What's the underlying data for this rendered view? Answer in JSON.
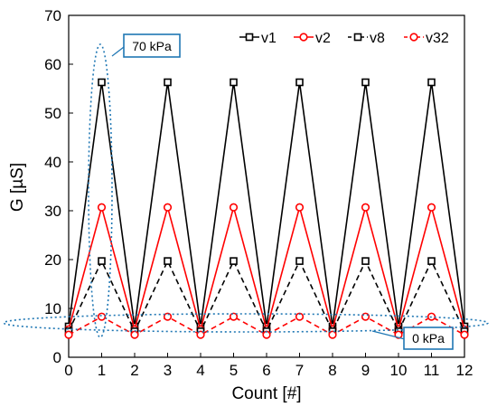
{
  "chart_data": {
    "type": "line",
    "title": "",
    "xlabel": "Count [#]",
    "ylabel": "G [µS]",
    "xlim": [
      0,
      12
    ],
    "ylim": [
      0,
      70
    ],
    "x_ticks": [
      0,
      1,
      2,
      3,
      4,
      5,
      6,
      7,
      8,
      9,
      10,
      11,
      12
    ],
    "y_ticks": [
      0,
      10,
      20,
      30,
      40,
      50,
      60,
      70
    ],
    "grid": false,
    "legend_position": "top-right",
    "x": [
      0,
      1,
      2,
      3,
      4,
      5,
      6,
      7,
      8,
      9,
      10,
      11,
      12
    ],
    "series": [
      {
        "name": "v1",
        "color": "#000000",
        "line_style": "solid",
        "marker": "square",
        "values": [
          6.3,
          56.3,
          6.3,
          56.3,
          6.3,
          56.3,
          6.3,
          56.3,
          6.3,
          56.3,
          6.3,
          56.3,
          6.3
        ]
      },
      {
        "name": "v2",
        "color": "#ff0000",
        "line_style": "solid",
        "marker": "circle",
        "values": [
          5.7,
          30.7,
          5.7,
          30.7,
          5.7,
          30.7,
          5.7,
          30.7,
          5.7,
          30.7,
          5.7,
          30.7,
          5.7
        ]
      },
      {
        "name": "v8",
        "color": "#000000",
        "line_style": "dashed",
        "marker": "square",
        "values": [
          5.3,
          19.7,
          5.3,
          19.7,
          5.3,
          19.7,
          5.3,
          19.7,
          5.3,
          19.7,
          5.3,
          19.7,
          5.3
        ]
      },
      {
        "name": "v32",
        "color": "#ff0000",
        "line_style": "dashed",
        "marker": "circle",
        "values": [
          4.6,
          8.3,
          4.6,
          8.3,
          4.6,
          8.3,
          4.6,
          8.3,
          4.6,
          8.3,
          4.6,
          8.3,
          4.6
        ]
      }
    ],
    "annotations": [
      {
        "text": "70 kPa",
        "color": "#1f77b4"
      },
      {
        "text": "0 kPa",
        "color": "#1f77b4"
      }
    ]
  }
}
